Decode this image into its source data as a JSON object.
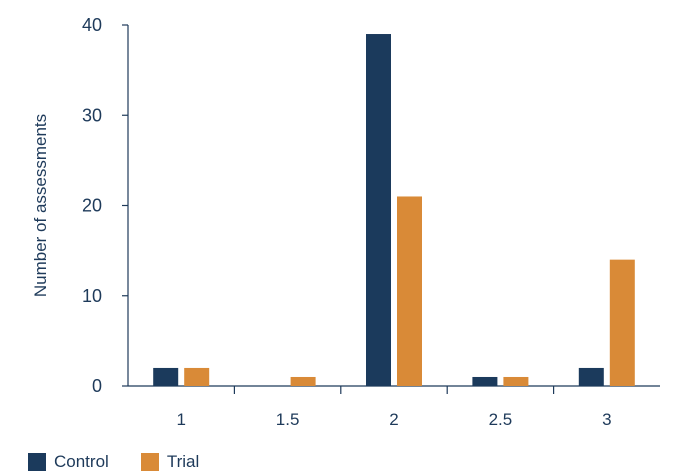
{
  "chart_data": {
    "type": "bar",
    "title": "",
    "xlabel": "",
    "ylabel": "Number of assessments",
    "categories": [
      "1",
      "1.5",
      "2",
      "2.5",
      "3"
    ],
    "ylim": [
      0,
      40
    ],
    "yticks": [
      "0",
      "10",
      "20",
      "30",
      "40"
    ],
    "grid": false,
    "legend_position": "bottom-left",
    "series": [
      {
        "name": "Control",
        "color": "#1b3a5c",
        "values": [
          2,
          0,
          39,
          1,
          2
        ]
      },
      {
        "name": "Trial",
        "color": "#d98a37",
        "values": [
          2,
          1,
          21,
          1,
          14
        ]
      }
    ]
  }
}
